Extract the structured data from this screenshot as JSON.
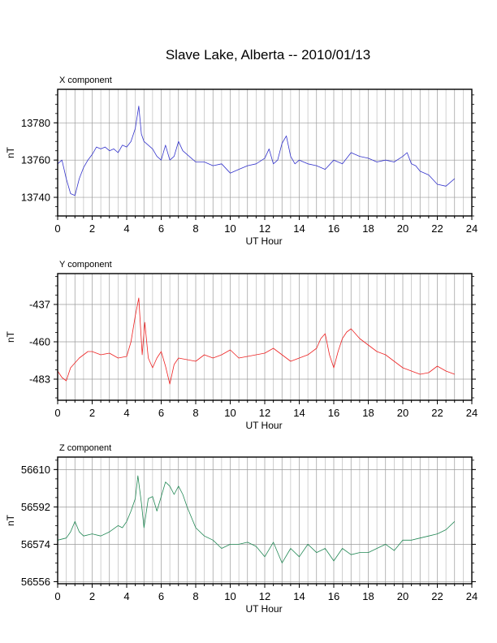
{
  "title": "Slave Lake, Alberta -- 2010/01/13",
  "chart_data": [
    {
      "type": "line",
      "title": "X component",
      "xlabel": "UT Hour",
      "ylabel": "nT",
      "xlim": [
        0,
        24
      ],
      "xticks": [
        0,
        2,
        4,
        6,
        8,
        10,
        12,
        14,
        16,
        18,
        20,
        22,
        24
      ],
      "ylim": [
        13730,
        13798
      ],
      "yticks": [
        13740,
        13760,
        13780
      ],
      "grid": true,
      "color": "#3333cc",
      "series": [
        {
          "x": [
            0,
            0.25,
            0.5,
            0.75,
            1.0,
            1.25,
            1.5,
            1.75,
            2.0,
            2.25,
            2.5,
            2.75,
            3.0,
            3.25,
            3.5,
            3.75,
            4.0,
            4.25,
            4.5,
            4.7,
            4.85,
            5.0,
            5.25,
            5.5,
            5.75,
            6.0,
            6.25,
            6.5,
            6.75,
            7.0,
            7.25,
            7.5,
            7.75,
            8.0,
            8.5,
            9.0,
            9.5,
            10.0,
            10.5,
            11.0,
            11.5,
            12.0,
            12.25,
            12.5,
            12.75,
            13.0,
            13.25,
            13.5,
            13.75,
            14.0,
            14.5,
            15.0,
            15.5,
            16.0,
            16.5,
            17.0,
            17.5,
            18.0,
            18.5,
            19.0,
            19.5,
            20.0,
            20.25,
            20.5,
            20.75,
            21.0,
            21.5,
            22.0,
            22.5,
            23.0
          ],
          "y": [
            13758,
            13760,
            13750,
            13742,
            13741,
            13750,
            13756,
            13760,
            13763,
            13767,
            13766,
            13767,
            13765,
            13766,
            13764,
            13768,
            13767,
            13770,
            13777,
            13789,
            13774,
            13770,
            13768,
            13766,
            13762,
            13760,
            13768,
            13760,
            13762,
            13770,
            13765,
            13763,
            13761,
            13759,
            13759,
            13757,
            13758,
            13753,
            13755,
            13757,
            13758,
            13761,
            13766,
            13758,
            13760,
            13769,
            13773,
            13762,
            13758,
            13760,
            13758,
            13757,
            13755,
            13760,
            13758,
            13764,
            13762,
            13761,
            13759,
            13760,
            13759,
            13762,
            13764,
            13758,
            13757,
            13754,
            13752,
            13747,
            13746,
            13750
          ]
        }
      ]
    },
    {
      "type": "line",
      "title": "Y component",
      "xlabel": "UT Hour",
      "ylabel": "nT",
      "xlim": [
        0,
        24
      ],
      "xticks": [
        0,
        2,
        4,
        6,
        8,
        10,
        12,
        14,
        16,
        18,
        20,
        22,
        24
      ],
      "ylim": [
        -496,
        -418
      ],
      "yticks": [
        -483,
        -460,
        -437
      ],
      "grid": true,
      "color": "#ee2222",
      "series": [
        {
          "x": [
            0,
            0.25,
            0.5,
            0.75,
            1.0,
            1.25,
            1.5,
            1.75,
            2.0,
            2.5,
            3.0,
            3.5,
            4.0,
            4.25,
            4.5,
            4.7,
            4.9,
            5.05,
            5.25,
            5.5,
            5.75,
            6.0,
            6.25,
            6.5,
            6.75,
            7.0,
            7.5,
            8.0,
            8.5,
            9.0,
            9.5,
            10.0,
            10.5,
            11.0,
            11.5,
            12.0,
            12.5,
            13.0,
            13.5,
            14.0,
            14.5,
            15.0,
            15.25,
            15.5,
            15.75,
            16.0,
            16.25,
            16.5,
            16.75,
            17.0,
            17.5,
            18.0,
            18.5,
            19.0,
            19.5,
            20.0,
            20.5,
            21.0,
            21.5,
            22.0,
            22.5,
            23.0
          ],
          "y": [
            -478,
            -482,
            -484,
            -476,
            -473,
            -470,
            -468,
            -466,
            -466,
            -468,
            -467,
            -470,
            -469,
            -460,
            -444,
            -433,
            -468,
            -448,
            -470,
            -476,
            -470,
            -466,
            -475,
            -486,
            -474,
            -470,
            -471,
            -472,
            -468,
            -470,
            -468,
            -465,
            -470,
            -469,
            -468,
            -467,
            -464,
            -468,
            -472,
            -470,
            -468,
            -464,
            -458,
            -455,
            -468,
            -476,
            -466,
            -458,
            -454,
            -452,
            -458,
            -462,
            -466,
            -468,
            -472,
            -476,
            -478,
            -480,
            -479,
            -475,
            -478,
            -480
          ]
        }
      ]
    },
    {
      "type": "line",
      "title": "Z component",
      "xlabel": "UT Hour",
      "ylabel": "nT",
      "xlim": [
        0,
        24
      ],
      "xticks": [
        0,
        2,
        4,
        6,
        8,
        10,
        12,
        14,
        16,
        18,
        20,
        22,
        24
      ],
      "ylim": [
        56555,
        56616
      ],
      "yticks": [
        56556,
        56574,
        56592,
        56610
      ],
      "grid": true,
      "color": "#228855",
      "series": [
        {
          "x": [
            0,
            0.5,
            0.75,
            1.0,
            1.25,
            1.5,
            2.0,
            2.5,
            3.0,
            3.5,
            3.75,
            4.0,
            4.25,
            4.5,
            4.65,
            4.85,
            5.0,
            5.25,
            5.5,
            5.75,
            6.0,
            6.25,
            6.5,
            6.75,
            7.0,
            7.25,
            7.5,
            8.0,
            8.5,
            9.0,
            9.5,
            10.0,
            10.5,
            11.0,
            11.5,
            12.0,
            12.5,
            13.0,
            13.5,
            14.0,
            14.5,
            15.0,
            15.5,
            16.0,
            16.5,
            17.0,
            17.5,
            18.0,
            18.5,
            19.0,
            19.5,
            20.0,
            20.5,
            21.0,
            21.5,
            22.0,
            22.5,
            23.0
          ],
          "y": [
            56576,
            56577,
            56580,
            56585,
            56580,
            56578,
            56579,
            56578,
            56580,
            56583,
            56582,
            56585,
            56590,
            56596,
            56607,
            56594,
            56582,
            56596,
            56597,
            56590,
            56597,
            56604,
            56602,
            56598,
            56602,
            56598,
            56592,
            56582,
            56578,
            56576,
            56572,
            56574,
            56574,
            56575,
            56573,
            56568,
            56575,
            56565,
            56572,
            56568,
            56574,
            56570,
            56572,
            56566,
            56572,
            56569,
            56570,
            56570,
            56572,
            56574,
            56571,
            56576,
            56576,
            56577,
            56578,
            56579,
            56581,
            56585
          ]
        }
      ]
    }
  ]
}
